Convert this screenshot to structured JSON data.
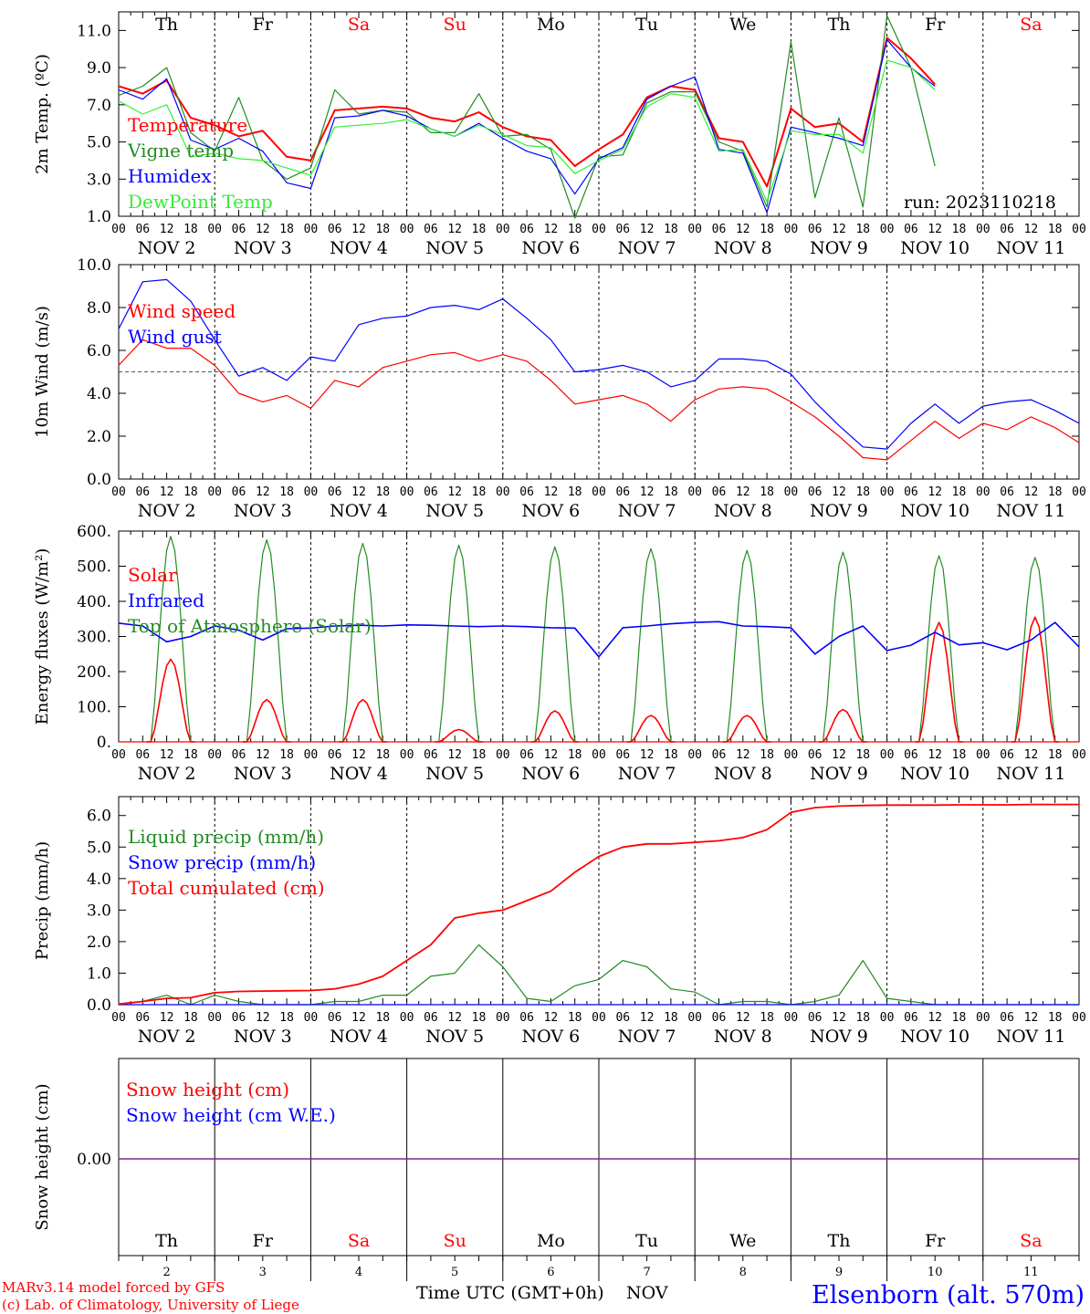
{
  "colors": {
    "temperature": "#ff0000",
    "vigne": "#228b22",
    "humidex": "#0000ff",
    "dewpoint": "#33ee33",
    "solar": "#ff0000",
    "infrared": "#0000ff",
    "toa": "#228b22",
    "liquid": "#228b22",
    "snow": "#0000ff",
    "cumul": "#ff0000",
    "snow_height": "#ff0000",
    "snow_we": "#0000ff",
    "weekend": "#ff0000",
    "station": "#0000ff",
    "credits": "#ff0000"
  },
  "days": [
    "Th",
    "Fr",
    "Sa",
    "Su",
    "Mo",
    "Tu",
    "We",
    "Th",
    "Fr",
    "Sa"
  ],
  "weekend_days": [
    2,
    3,
    9
  ],
  "date_labels": [
    "NOV  2",
    "NOV  3",
    "NOV  4",
    "NOV  5",
    "NOV  6",
    "NOV  7",
    "NOV  8",
    "NOV  9",
    "NOV 10",
    "NOV 11"
  ],
  "hour_labels": [
    "00",
    "06",
    "12",
    "18"
  ],
  "day_numbers": [
    "2",
    "3",
    "4",
    "5",
    "6",
    "7",
    "8",
    "9",
    "10",
    "11"
  ],
  "footer": {
    "xlabel": "Time UTC (GMT+0h)",
    "month": "NOV",
    "credit1": "MARv3.14 model forced by GFS",
    "credit2": "(c) Lab. of Climatology, University of Liege",
    "station": "Elsenborn (alt. 570m)"
  },
  "chart_data": [
    {
      "type": "line",
      "ylabel": "2m Temp. (ºC)",
      "ylim": [
        1.0,
        12.0
      ],
      "yticks": [
        "1.0",
        "3.0",
        "5.0",
        "7.0",
        "9.0",
        "11.0"
      ],
      "run": "run: 2023110218",
      "x_unit": "hours since NOV 2 00 UTC",
      "x": [
        0,
        6,
        12,
        18,
        24,
        30,
        36,
        42,
        48,
        54,
        60,
        66,
        72,
        78,
        84,
        90,
        96,
        102,
        108,
        114,
        120,
        126,
        132,
        138,
        144,
        150,
        156,
        162,
        168,
        174,
        180,
        186,
        192,
        198,
        204,
        210,
        216,
        222,
        228,
        234,
        240
      ],
      "series": [
        {
          "name": "Temperature",
          "values": [
            8.0,
            7.6,
            8.3,
            6.3,
            5.9,
            5.3,
            5.6,
            4.2,
            4.0,
            6.7,
            6.8,
            6.9,
            6.8,
            6.3,
            6.1,
            6.6,
            5.8,
            5.3,
            5.1,
            3.7,
            4.6,
            5.4,
            7.4,
            8.0,
            7.8,
            5.2,
            5.0,
            2.6,
            6.8,
            5.8,
            6.0,
            5.0,
            10.6,
            9.5,
            8.1,
            null,
            null,
            null,
            null,
            null,
            null
          ]
        },
        {
          "name": "Vigne temp",
          "values": [
            7.5,
            8.0,
            9.0,
            5.5,
            4.5,
            7.4,
            4.0,
            3.0,
            3.6,
            7.8,
            6.5,
            6.7,
            6.6,
            5.5,
            5.5,
            7.6,
            5.3,
            5.4,
            4.6,
            0.9,
            4.2,
            4.3,
            7.1,
            7.7,
            7.7,
            5.0,
            4.5,
            1.5,
            10.4,
            2.0,
            6.3,
            1.5,
            11.8,
            9.0,
            3.7,
            null,
            null,
            null,
            null,
            null,
            null
          ]
        },
        {
          "name": "Humidex",
          "values": [
            7.8,
            7.3,
            8.4,
            5.1,
            4.6,
            5.2,
            4.5,
            2.8,
            2.5,
            6.3,
            6.4,
            6.7,
            6.4,
            5.7,
            5.3,
            6.0,
            5.2,
            4.5,
            4.1,
            2.2,
            4.1,
            4.7,
            7.3,
            8.0,
            8.5,
            4.6,
            4.4,
            1.2,
            5.8,
            5.5,
            5.2,
            4.8,
            10.5,
            9.0,
            8.0,
            null,
            null,
            null,
            null,
            null,
            null
          ]
        },
        {
          "name": "DewPoint Temp",
          "values": [
            7.2,
            6.5,
            7.0,
            4.2,
            4.4,
            4.1,
            4.0,
            3.6,
            3.2,
            5.8,
            5.9,
            6.0,
            6.2,
            5.7,
            5.3,
            5.9,
            5.4,
            4.8,
            4.7,
            3.3,
            4.0,
            4.6,
            6.9,
            7.6,
            7.4,
            4.5,
            4.6,
            1.8,
            5.6,
            5.4,
            5.4,
            4.4,
            9.4,
            9.0,
            7.8,
            null,
            null,
            null,
            null,
            null,
            null
          ]
        }
      ]
    },
    {
      "type": "line",
      "ylabel": "10m Wind (m/s)",
      "ylim": [
        0.0,
        10.0
      ],
      "yticks": [
        "0.0",
        "2.0",
        "4.0",
        "6.0",
        "8.0",
        "10.0"
      ],
      "reference_line": 5.0,
      "x_unit": "hours since NOV 2 00 UTC",
      "x": [
        0,
        6,
        12,
        18,
        24,
        30,
        36,
        42,
        48,
        54,
        60,
        66,
        72,
        78,
        84,
        90,
        96,
        102,
        108,
        114,
        120,
        126,
        132,
        138,
        144,
        150,
        156,
        162,
        168,
        174,
        180,
        186,
        192,
        198,
        204,
        210,
        216,
        222,
        228,
        234,
        240
      ],
      "series": [
        {
          "name": "Wind speed",
          "values": [
            5.3,
            6.5,
            6.1,
            6.1,
            5.3,
            4.0,
            3.6,
            3.9,
            3.3,
            4.6,
            4.3,
            5.2,
            5.5,
            5.8,
            5.9,
            5.5,
            5.8,
            5.5,
            4.6,
            3.5,
            3.7,
            3.9,
            3.5,
            2.7,
            3.7,
            4.2,
            4.3,
            4.2,
            3.6,
            2.9,
            2.0,
            1.0,
            0.9,
            1.8,
            2.7,
            1.9,
            2.6,
            2.3,
            2.9,
            2.4,
            1.7
          ]
        },
        {
          "name": "Wind gust",
          "values": [
            7.0,
            9.2,
            9.3,
            8.3,
            6.5,
            4.8,
            5.2,
            4.6,
            5.7,
            5.5,
            7.2,
            7.5,
            7.6,
            8.0,
            8.1,
            7.9,
            8.4,
            7.5,
            6.5,
            5.0,
            5.1,
            5.3,
            5.0,
            4.3,
            4.6,
            5.6,
            5.6,
            5.5,
            4.9,
            3.6,
            2.5,
            1.5,
            1.4,
            2.6,
            3.5,
            2.6,
            3.4,
            3.6,
            3.7,
            3.2,
            2.6
          ]
        }
      ]
    },
    {
      "type": "line",
      "ylabel": "Energy fluxes (W/m²)",
      "ylim": [
        0,
        600
      ],
      "yticks": [
        "0.",
        "100.",
        "200.",
        "300.",
        "400.",
        "500.",
        "600."
      ],
      "x_unit": "hours since NOV 2 00 UTC",
      "series": [
        {
          "name": "Solar",
          "peaks_hour": [
            13,
            37,
            61,
            85,
            109,
            133,
            157,
            181,
            205,
            229
          ],
          "peak_values": [
            235,
            120,
            120,
            35,
            88,
            75,
            75,
            92,
            340,
            355
          ]
        },
        {
          "name": "Infrared",
          "x": [
            0,
            6,
            12,
            18,
            24,
            30,
            36,
            42,
            48,
            54,
            60,
            66,
            72,
            78,
            84,
            90,
            96,
            102,
            108,
            114,
            120,
            126,
            132,
            138,
            144,
            150,
            156,
            162,
            168,
            174,
            180,
            186,
            192,
            198,
            204,
            210,
            216,
            222,
            228,
            234,
            240
          ],
          "values": [
            338,
            330,
            285,
            300,
            330,
            318,
            290,
            322,
            324,
            330,
            332,
            330,
            333,
            332,
            330,
            328,
            330,
            328,
            325,
            324,
            242,
            325,
            330,
            336,
            340,
            342,
            330,
            328,
            325,
            250,
            300,
            330,
            260,
            275,
            312,
            276,
            282,
            262,
            290,
            340,
            270
          ]
        },
        {
          "name": "Top of Atmosphere (Solar)",
          "peaks_hour": [
            13,
            37,
            61,
            85,
            109,
            133,
            157,
            181,
            205,
            229
          ],
          "peak_values": [
            585,
            575,
            565,
            560,
            555,
            550,
            545,
            540,
            530,
            525
          ]
        }
      ]
    },
    {
      "type": "line",
      "ylabel": "Precip (mm/h)",
      "ylim": [
        0.0,
        6.6
      ],
      "yticks": [
        "0.0",
        "1.0",
        "2.0",
        "3.0",
        "4.0",
        "5.0",
        "6.0"
      ],
      "x_unit": "hours since NOV 2 00 UTC",
      "x": [
        0,
        6,
        12,
        18,
        24,
        30,
        36,
        42,
        48,
        54,
        60,
        66,
        72,
        78,
        84,
        90,
        96,
        102,
        108,
        114,
        120,
        126,
        132,
        138,
        144,
        150,
        156,
        162,
        168,
        174,
        180,
        186,
        192,
        198,
        204,
        210,
        216,
        222,
        228,
        234,
        240
      ],
      "series": [
        {
          "name": "Liquid precip (mm/h)",
          "values": [
            0.0,
            0.1,
            0.3,
            0.0,
            0.3,
            0.1,
            0.0,
            0.0,
            0.0,
            0.1,
            0.1,
            0.3,
            0.3,
            0.9,
            1.0,
            1.9,
            1.2,
            0.2,
            0.1,
            0.6,
            0.8,
            1.4,
            1.2,
            0.5,
            0.4,
            0.0,
            0.1,
            0.1,
            0.0,
            0.1,
            0.3,
            1.4,
            0.2,
            0.1,
            0.0,
            0.0,
            0.0,
            0.0,
            0.0,
            0.0,
            0.0
          ]
        },
        {
          "name": "Snow precip (mm/h)",
          "values": [
            0,
            0,
            0,
            0,
            0,
            0,
            0,
            0,
            0,
            0,
            0,
            0,
            0,
            0,
            0,
            0,
            0,
            0,
            0,
            0,
            0,
            0,
            0,
            0,
            0,
            0,
            0,
            0,
            0,
            0,
            0,
            0,
            0,
            0,
            0,
            0,
            0,
            0,
            0,
            0,
            0
          ]
        },
        {
          "name": "Total cumulated (cm)",
          "values": [
            0.02,
            0.1,
            0.2,
            0.22,
            0.38,
            0.42,
            0.43,
            0.44,
            0.45,
            0.5,
            0.65,
            0.9,
            1.4,
            1.9,
            2.75,
            2.9,
            3.0,
            3.3,
            3.6,
            4.2,
            4.7,
            5.0,
            5.1,
            5.1,
            5.15,
            5.2,
            5.3,
            5.55,
            6.1,
            6.25,
            6.3,
            6.32,
            6.33,
            6.33,
            6.33,
            6.34,
            6.34,
            6.34,
            6.35,
            6.35,
            6.35
          ]
        }
      ]
    },
    {
      "type": "line",
      "ylabel": "Snow height (cm)",
      "yticks": [
        "0.00"
      ],
      "series": [
        {
          "name": "Snow height (cm)",
          "values": [
            0,
            0
          ]
        },
        {
          "name": "Snow height (cm W.E.)",
          "values": [
            0,
            0
          ]
        }
      ]
    }
  ]
}
